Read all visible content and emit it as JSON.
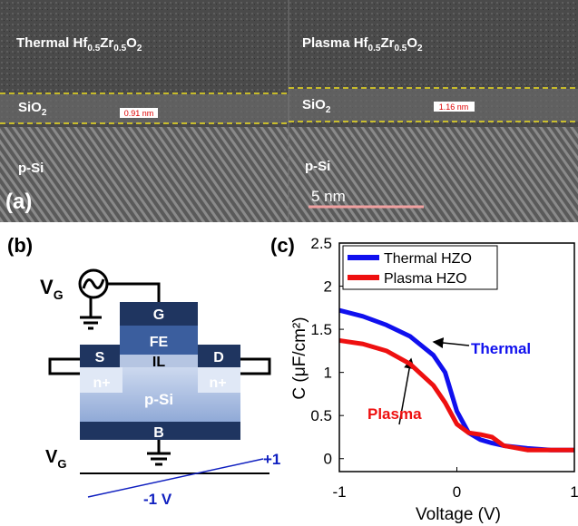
{
  "panel_a": {
    "label": "(a)",
    "left": {
      "film": [
        "Thermal Hf",
        "0.5",
        "Zr",
        "0.5",
        "O",
        "2"
      ],
      "interlayer": [
        "SiO",
        "2"
      ],
      "thickness": "0.91 nm",
      "substrate": "p-Si"
    },
    "right": {
      "film": [
        "Plasma Hf",
        "0.5",
        "Zr",
        "0.5",
        "O",
        "2"
      ],
      "interlayer": [
        "SiO",
        "2"
      ],
      "thickness": "1.16 nm",
      "substrate": "p-Si"
    },
    "scale_bar": "5 nm"
  },
  "panel_b": {
    "label": "(b)",
    "source_label": [
      "V",
      "G"
    ],
    "gate": "G",
    "ferroelectric": "FE",
    "interlayer": "IL",
    "source": "S",
    "drain": "D",
    "source_doping": "n+",
    "drain_doping": "n+",
    "substrate": "p-Si",
    "body": "B",
    "sweep_label": [
      "V",
      "G"
    ],
    "sweep_high": "+1",
    "sweep_low": "-1 V"
  },
  "chart_data": {
    "type": "line",
    "panel_label": "(c)",
    "x_label": "Voltage (V)",
    "y_label": "C (μF/cm²)",
    "x": [
      -1,
      -0.8,
      -0.6,
      -0.4,
      -0.2,
      -0.1,
      0,
      0.1,
      0.2,
      0.3,
      0.4,
      0.6,
      0.8,
      1
    ],
    "series": [
      {
        "name": "Thermal HZO",
        "color": "#1010ee",
        "values": [
          1.72,
          1.65,
          1.55,
          1.42,
          1.2,
          1.0,
          0.55,
          0.3,
          0.22,
          0.18,
          0.15,
          0.12,
          0.1,
          0.1
        ]
      },
      {
        "name": "Plasma HZO",
        "color": "#ee1010",
        "values": [
          1.37,
          1.33,
          1.25,
          1.1,
          0.85,
          0.65,
          0.4,
          0.3,
          0.28,
          0.25,
          0.15,
          0.1,
          0.1,
          0.1
        ]
      }
    ],
    "xlim": [
      -1,
      1
    ],
    "xticks": [
      -1,
      0,
      1
    ],
    "ylim": [
      -0.15,
      2.5
    ],
    "yticks": [
      0,
      0.5,
      1,
      1.5,
      2,
      2.5
    ],
    "annotations": [
      "Thermal",
      "Plasma"
    ],
    "legend": "upper left"
  }
}
